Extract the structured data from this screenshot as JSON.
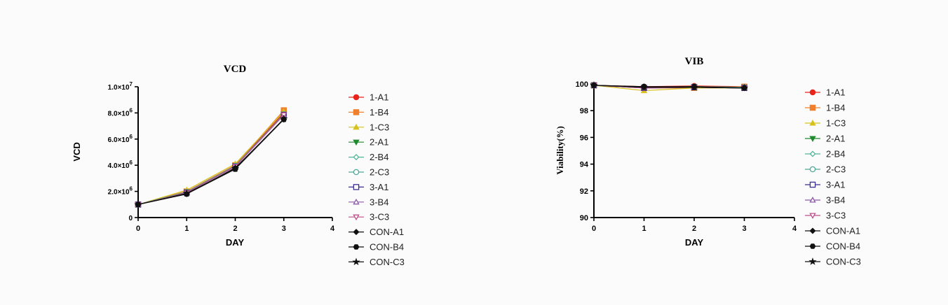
{
  "chart_data": [
    {
      "type": "line",
      "title": "VCD",
      "xlabel": "DAY",
      "ylabel": "VCD",
      "x": [
        0,
        1,
        2,
        3
      ],
      "xlim": [
        0,
        4
      ],
      "ylim": [
        0,
        10000000
      ],
      "xticks": [
        "0",
        "1",
        "2",
        "3",
        "4"
      ],
      "yticks": [
        {
          "value": 0,
          "base": "0",
          "exp": ""
        },
        {
          "value": 2000000,
          "base": "2.0×10",
          "exp": "6"
        },
        {
          "value": 4000000,
          "base": "4.0×10",
          "exp": "6"
        },
        {
          "value": 6000000,
          "base": "6.0×10",
          "exp": "6"
        },
        {
          "value": 8000000,
          "base": "8.0×10",
          "exp": "6"
        },
        {
          "value": 10000000,
          "base": "1.0×10",
          "exp": "7"
        }
      ],
      "legend_position": "right",
      "series": [
        {
          "name": "1-A1",
          "values": [
            1000000,
            2000000,
            4000000,
            8000000
          ]
        },
        {
          "name": "1-B4",
          "values": [
            1000000,
            2000000,
            4000000,
            8200000
          ]
        },
        {
          "name": "1-C3",
          "values": [
            1000000,
            2100000,
            4100000,
            8100000
          ]
        },
        {
          "name": "2-A1",
          "values": [
            1000000,
            1950000,
            3950000,
            7900000
          ]
        },
        {
          "name": "2-B4",
          "values": [
            1000000,
            1950000,
            3950000,
            7900000
          ]
        },
        {
          "name": "2-C3",
          "values": [
            1000000,
            1950000,
            3950000,
            7900000
          ]
        },
        {
          "name": "3-A1",
          "values": [
            1000000,
            1900000,
            3900000,
            7850000
          ]
        },
        {
          "name": "3-B4",
          "values": [
            1000000,
            1900000,
            3900000,
            7850000
          ]
        },
        {
          "name": "3-C3",
          "values": [
            1000000,
            1900000,
            3900000,
            7850000
          ]
        },
        {
          "name": "CON-A1",
          "values": [
            1000000,
            1800000,
            3800000,
            7500000
          ]
        },
        {
          "name": "CON-B4",
          "values": [
            1000000,
            1800000,
            3700000,
            7500000
          ]
        },
        {
          "name": "CON-C3",
          "values": [
            1000000,
            1850000,
            3750000,
            7550000
          ]
        }
      ]
    },
    {
      "type": "line",
      "title": "VIB",
      "xlabel": "DAY",
      "ylabel": "Viability(%)",
      "x": [
        0,
        1,
        2,
        3
      ],
      "xlim": [
        0,
        4
      ],
      "ylim": [
        90,
        100
      ],
      "xticks": [
        "0",
        "1",
        "2",
        "3",
        "4"
      ],
      "yticks": [
        {
          "value": 90,
          "base": "90",
          "exp": ""
        },
        {
          "value": 92,
          "base": "92",
          "exp": ""
        },
        {
          "value": 94,
          "base": "94",
          "exp": ""
        },
        {
          "value": 96,
          "base": "96",
          "exp": ""
        },
        {
          "value": 98,
          "base": "98",
          "exp": ""
        },
        {
          "value": 100,
          "base": "100",
          "exp": ""
        }
      ],
      "legend_position": "right",
      "series": [
        {
          "name": "1-A1",
          "values": [
            99.9,
            99.8,
            99.85,
            99.8
          ]
        },
        {
          "name": "1-B4",
          "values": [
            99.9,
            99.7,
            99.7,
            99.8
          ]
        },
        {
          "name": "1-C3",
          "values": [
            99.9,
            99.5,
            99.7,
            99.7
          ]
        },
        {
          "name": "2-A1",
          "values": [
            99.9,
            99.75,
            99.8,
            99.75
          ]
        },
        {
          "name": "2-B4",
          "values": [
            99.9,
            99.75,
            99.8,
            99.75
          ]
        },
        {
          "name": "2-C3",
          "values": [
            99.9,
            99.75,
            99.8,
            99.75
          ]
        },
        {
          "name": "3-A1",
          "values": [
            99.9,
            99.7,
            99.75,
            99.7
          ]
        },
        {
          "name": "3-B4",
          "values": [
            99.9,
            99.7,
            99.75,
            99.7
          ]
        },
        {
          "name": "3-C3",
          "values": [
            99.9,
            99.7,
            99.75,
            99.7
          ]
        },
        {
          "name": "CON-A1",
          "values": [
            99.9,
            99.75,
            99.75,
            99.7
          ]
        },
        {
          "name": "CON-B4",
          "values": [
            99.9,
            99.8,
            99.8,
            99.7
          ]
        },
        {
          "name": "CON-C3",
          "values": [
            99.9,
            99.75,
            99.75,
            99.7
          ]
        }
      ]
    }
  ],
  "series_styles": [
    {
      "name": "1-A1",
      "color": "#e8231c",
      "marker": "circle-filled"
    },
    {
      "name": "1-B4",
      "color": "#f07f2b",
      "marker": "square-filled"
    },
    {
      "name": "1-C3",
      "color": "#d6c21a",
      "marker": "triangle-up-filled"
    },
    {
      "name": "2-A1",
      "color": "#1f8a2e",
      "marker": "triangle-down-filled"
    },
    {
      "name": "2-B4",
      "color": "#4fb59a",
      "marker": "diamond-open"
    },
    {
      "name": "2-C3",
      "color": "#4fa896",
      "marker": "circle-open"
    },
    {
      "name": "3-A1",
      "color": "#3a2f8f",
      "marker": "square-open"
    },
    {
      "name": "3-B4",
      "color": "#8e5aa8",
      "marker": "triangle-up-open"
    },
    {
      "name": "3-C3",
      "color": "#c0508c",
      "marker": "triangle-down-open"
    },
    {
      "name": "CON-A1",
      "color": "#111111",
      "marker": "diamond-filled"
    },
    {
      "name": "CON-B4",
      "color": "#111111",
      "marker": "hexagon-filled"
    },
    {
      "name": "CON-C3",
      "color": "#111111",
      "marker": "star-filled"
    }
  ]
}
